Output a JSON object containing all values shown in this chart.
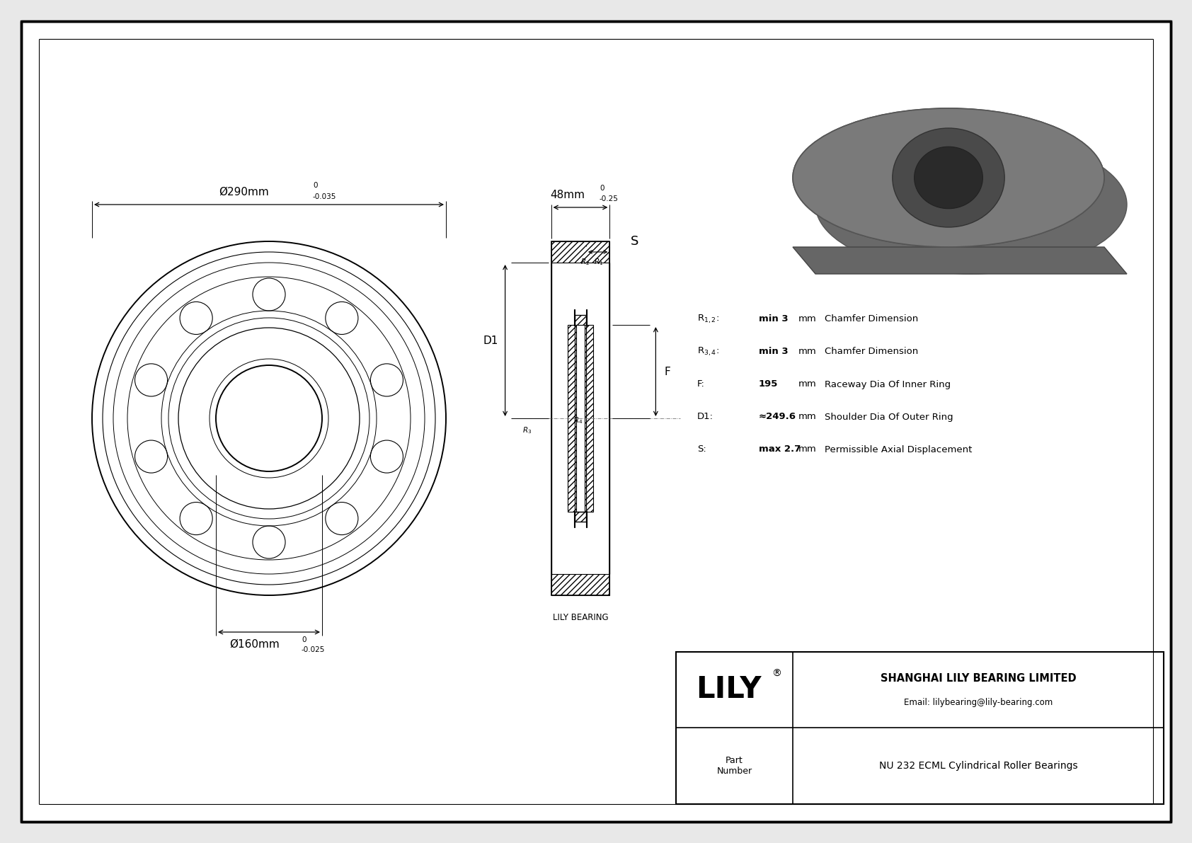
{
  "bg_color": "#e8e8e8",
  "drawing_bg": "#ffffff",
  "border_color": "#000000",
  "company": "SHANGHAI LILY BEARING LIMITED",
  "email": "Email: lilybearing@lily-bearing.com",
  "part_number": "NU 232 ECML Cylindrical Roller Bearings",
  "lily_logo": "LILY",
  "outer_dia_label": "Ø290mm",
  "outer_dia_tol_upper": "0",
  "outer_dia_tol_lower": "-0.035",
  "inner_dia_label": "Ø160mm",
  "inner_dia_tol_upper": "0",
  "inner_dia_tol_lower": "-0.025",
  "width_label": "48mm",
  "width_tol_upper": "0",
  "width_tol_lower": "-0.25",
  "params": {
    "R12_label": "R$_{1,2}$:",
    "R12_value": "min 3",
    "R12_unit": "mm",
    "R12_desc": "Chamfer Dimension",
    "R34_label": "R$_{3,4}$:",
    "R34_value": "min 3",
    "R34_unit": "mm",
    "R34_desc": "Chamfer Dimension",
    "F_label": "F:",
    "F_value": "195",
    "F_unit": "mm",
    "F_desc": "Raceway Dia Of Inner Ring",
    "D1_label": "D1:",
    "D1_value": "≈249.6",
    "D1_unit": "mm",
    "D1_desc": "Shoulder Dia Of Outer Ring",
    "S_label": "S:",
    "S_value": "max 2.7",
    "S_unit": "mm",
    "S_desc": "Permissible Axial Displacement"
  },
  "lily_bearing_label": "LILY BEARING",
  "line_color": "#000000"
}
